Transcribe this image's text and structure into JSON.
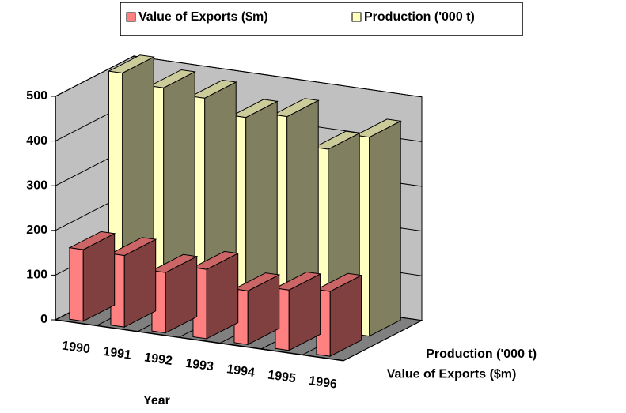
{
  "chart_data": {
    "type": "bar3d",
    "categories": [
      "1990",
      "1991",
      "1992",
      "1993",
      "1994",
      "1995",
      "1996"
    ],
    "series": [
      {
        "name": "Value of Exports ($m)",
        "color": "#ff8080",
        "values": [
          160,
          160,
          135,
          155,
          120,
          135,
          145
        ]
      },
      {
        "name": "Production ('000 t)",
        "color": "#ffffc0",
        "values": [
          510,
          490,
          480,
          450,
          465,
          405,
          445
        ]
      }
    ],
    "x_label": "Year",
    "ylim": [
      0,
      500
    ],
    "yticks": [
      0,
      100,
      200,
      300,
      400,
      500
    ],
    "grid": true,
    "legend": "top"
  }
}
